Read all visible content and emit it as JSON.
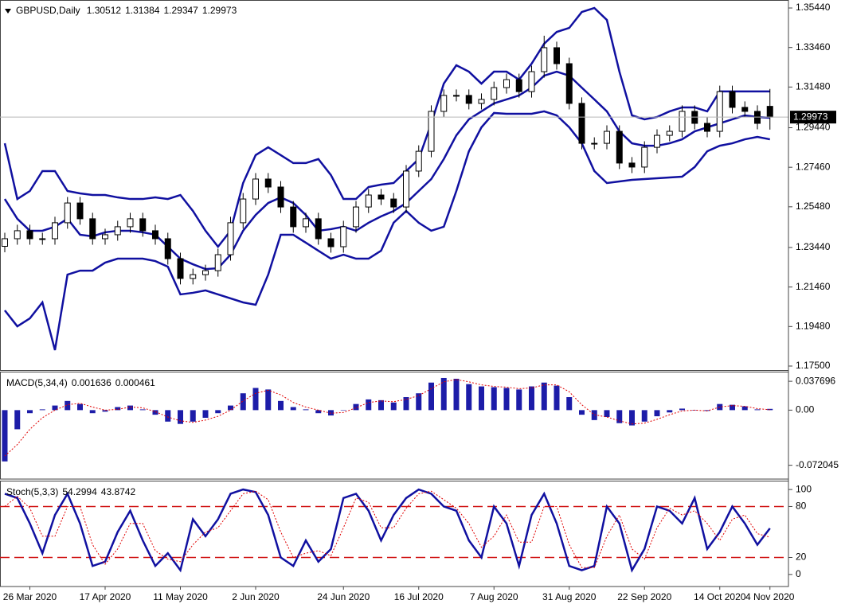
{
  "chart_data": [
    {
      "type": "candlestick",
      "title": "GBPUSD,Daily",
      "categories": [
        null,
        null,
        "26 Mar 2020",
        null,
        null,
        null,
        null,
        null,
        "17 Apr 2020",
        null,
        null,
        null,
        null,
        null,
        "11 May 2020",
        null,
        null,
        null,
        null,
        null,
        "2 Jun 2020",
        null,
        null,
        null,
        null,
        null,
        null,
        "24 Jun 2020",
        null,
        null,
        null,
        null,
        null,
        "16 Jul 2020",
        null,
        null,
        null,
        null,
        null,
        "7 Aug 2020",
        null,
        null,
        null,
        null,
        null,
        "31 Aug 2020",
        null,
        null,
        null,
        null,
        null,
        "22 Sep 2020",
        null,
        null,
        null,
        null,
        null,
        "14 Oct 2020",
        null,
        null,
        null,
        "4 Nov 2020"
      ],
      "open": [
        1.235,
        1.2388,
        1.2428,
        1.2388,
        1.2388,
        1.2468,
        1.2567,
        1.2488,
        1.2388,
        1.2408,
        1.2448,
        1.2488,
        1.2428,
        1.2388,
        1.2288,
        1.2189,
        1.2208,
        1.2228,
        1.2308,
        1.2468,
        1.2587,
        1.2687,
        1.2647,
        1.2547,
        1.2448,
        1.2488,
        1.2388,
        1.2348,
        1.2448,
        1.2547,
        1.2607,
        1.2587,
        1.2547,
        1.2727,
        1.2826,
        1.3026,
        1.3106,
        1.3106,
        1.3066,
        1.3086,
        1.3145,
        1.3185,
        1.3125,
        1.3225,
        1.3345,
        1.3265,
        1.3066,
        1.2866,
        1.2866,
        1.2926,
        1.2767,
        1.2747,
        1.2846,
        1.2906,
        1.2926,
        1.3026,
        1.2966,
        1.2926,
        1.3125,
        1.3046,
        1.3026,
        1.30512
      ],
      "high": [
        1.2418,
        1.2458,
        1.2458,
        1.2418,
        1.2498,
        1.2597,
        1.2597,
        1.2518,
        1.2438,
        1.2478,
        1.2518,
        1.2518,
        1.2458,
        1.2418,
        1.2318,
        1.2238,
        1.2258,
        1.2338,
        1.2498,
        1.2617,
        1.2717,
        1.2717,
        1.2677,
        1.2577,
        1.2518,
        1.2518,
        1.2418,
        1.2478,
        1.2577,
        1.2637,
        1.2637,
        1.2617,
        1.2757,
        1.2856,
        1.3056,
        1.3136,
        1.3136,
        1.3136,
        1.3116,
        1.3175,
        1.3215,
        1.3215,
        1.3255,
        1.3405,
        1.3375,
        1.3295,
        1.3096,
        1.2896,
        1.2956,
        1.2956,
        1.2797,
        1.2876,
        1.2936,
        1.2956,
        1.3056,
        1.3056,
        1.2996,
        1.3155,
        1.3155,
        1.3076,
        1.3056,
        1.31384
      ],
      "low": [
        1.232,
        1.2358,
        1.2358,
        1.2358,
        1.2358,
        1.2438,
        1.2458,
        1.2358,
        1.2358,
        1.2378,
        1.2418,
        1.2398,
        1.2358,
        1.2258,
        1.2159,
        1.2159,
        1.2178,
        1.2198,
        1.2278,
        1.2438,
        1.2557,
        1.2617,
        1.2517,
        1.2418,
        1.2418,
        1.2358,
        1.2318,
        1.2318,
        1.2418,
        1.2517,
        1.2557,
        1.2517,
        1.2517,
        1.2697,
        1.2796,
        1.2996,
        1.3076,
        1.3036,
        1.3036,
        1.3056,
        1.3115,
        1.3095,
        1.3095,
        1.3195,
        1.3235,
        1.3036,
        1.2836,
        1.2836,
        1.2836,
        1.2737,
        1.2717,
        1.2717,
        1.2816,
        1.2876,
        1.2896,
        1.2936,
        1.2896,
        1.2896,
        1.3016,
        1.2996,
        1.2936,
        1.29347
      ],
      "close": [
        1.2388,
        1.2428,
        1.2388,
        1.2388,
        1.2468,
        1.2567,
        1.2488,
        1.2388,
        1.2408,
        1.2448,
        1.2488,
        1.2428,
        1.2388,
        1.2288,
        1.2189,
        1.2208,
        1.2228,
        1.2308,
        1.2468,
        1.2587,
        1.2687,
        1.2647,
        1.2547,
        1.2448,
        1.2488,
        1.2388,
        1.2348,
        1.2448,
        1.2547,
        1.2607,
        1.2587,
        1.2547,
        1.2727,
        1.2826,
        1.3026,
        1.3106,
        1.3106,
        1.3066,
        1.3086,
        1.3145,
        1.3185,
        1.3125,
        1.3225,
        1.3345,
        1.3265,
        1.3066,
        1.2866,
        1.2866,
        1.2926,
        1.2767,
        1.2747,
        1.2846,
        1.2906,
        1.2926,
        1.3026,
        1.2966,
        1.2926,
        1.3125,
        1.3046,
        1.3026,
        1.2966,
        1.29973
      ],
      "bands": [
        {
          "color": "#1010a0",
          "values": [
            1.2866,
            1.2587,
            1.2627,
            1.2727,
            1.2727,
            1.2627,
            1.2615,
            1.2607,
            1.2607,
            1.2595,
            1.2587,
            1.2587,
            1.2595,
            1.2587,
            1.2607,
            1.2527,
            1.2428,
            1.2348,
            1.2428,
            1.2667,
            1.2807,
            1.2846,
            1.2807,
            1.2767,
            1.2767,
            1.2787,
            1.2707,
            1.2587,
            1.2587,
            1.2647,
            1.2659,
            1.2667,
            1.2727,
            1.2787,
            1.2966,
            1.3165,
            1.3257,
            1.3225,
            1.3165,
            1.3225,
            1.3225,
            1.3185,
            1.3265,
            1.3365,
            1.3424,
            1.3444,
            1.3524,
            1.3544,
            1.3484,
            1.3225,
            1.3006,
            1.2986,
            1.2998,
            1.3026,
            1.3046,
            1.3046,
            1.3026,
            1.3126,
            1.3126,
            1.3126,
            1.3126,
            1.3126
          ]
        },
        {
          "color": "#1010a0",
          "values": [
            1.2587,
            1.2488,
            1.2428,
            1.2428,
            1.2448,
            1.2488,
            1.2408,
            1.24,
            1.242,
            1.2428,
            1.2428,
            1.242,
            1.2408,
            1.2348,
            1.2288,
            1.226,
            1.2236,
            1.224,
            1.2308,
            1.2428,
            1.2507,
            1.2567,
            1.2595,
            1.2567,
            1.2507,
            1.2428,
            1.2436,
            1.2448,
            1.2428,
            1.2468,
            1.25,
            1.2527,
            1.2567,
            1.2627,
            1.2687,
            1.2787,
            1.2906,
            1.2986,
            1.3026,
            1.3066,
            1.3086,
            1.3106,
            1.3145,
            1.3205,
            1.3225,
            1.3205,
            1.3145,
            1.3086,
            1.3026,
            1.2926,
            1.2866,
            1.2854,
            1.2854,
            1.2866,
            1.2886,
            1.2926,
            1.2946,
            1.2966,
            1.2986,
            1.3006,
            1.2998,
            1.2994
          ]
        },
        {
          "color": "#1010a0",
          "values": [
            1.2029,
            1.1949,
            1.1989,
            1.2069,
            1.183,
            1.2208,
            1.2228,
            1.2228,
            1.2268,
            1.2288,
            1.2288,
            1.2288,
            1.2276,
            1.2248,
            1.2109,
            1.2117,
            1.2129,
            1.2109,
            1.2089,
            1.2069,
            1.2057,
            1.2208,
            1.2408,
            1.2408,
            1.2368,
            1.2328,
            1.2288,
            1.2308,
            1.2288,
            1.2288,
            1.2328,
            1.2468,
            1.2527,
            1.2468,
            1.2428,
            1.2448,
            1.2627,
            1.2826,
            1.2946,
            1.3018,
            1.3014,
            1.3014,
            1.3014,
            1.3026,
            1.3006,
            1.2946,
            1.2866,
            1.2727,
            1.2667,
            1.2675,
            1.2683,
            1.2687,
            1.2691,
            1.2695,
            1.2699,
            1.2747,
            1.2826,
            1.2854,
            1.2866,
            1.2886,
            1.2898,
            1.2886
          ]
        }
      ],
      "ylim": [
        1.173,
        1.3584
      ],
      "yticks": [
        {
          "value": 1.3544,
          "label": "1.35440"
        },
        {
          "value": 1.3346,
          "label": "1.33460"
        },
        {
          "value": 1.3148,
          "label": "1.31480"
        },
        {
          "value": 1.2944,
          "label": "1.29440"
        },
        {
          "value": 1.2746,
          "label": "1.27460"
        },
        {
          "value": 1.2548,
          "label": "1.25480"
        },
        {
          "value": 1.2344,
          "label": "1.23440"
        },
        {
          "value": 1.2146,
          "label": "1.21460"
        },
        {
          "value": 1.1948,
          "label": "1.19480"
        },
        {
          "value": 1.175,
          "label": "1.17500"
        }
      ]
    },
    {
      "type": "bar",
      "title": "MACD(5,34,4)",
      "series": [
        {
          "type": "bar",
          "color": "#1c1ca8",
          "values": [
            -0.067,
            -0.025,
            -0.004,
            0.001,
            0.006,
            0.012,
            0.008,
            -0.004,
            -0.002,
            0.004,
            0.006,
            0.001,
            -0.006,
            -0.015,
            -0.018,
            -0.015,
            -0.01,
            -0.004,
            0.006,
            0.022,
            0.029,
            0.027,
            0.012,
            0.004,
            0.001,
            -0.004,
            -0.007,
            0,
            0.008,
            0.014,
            0.013,
            0.01,
            0.017,
            0.022,
            0.036,
            0.042,
            0.041,
            0.034,
            0.031,
            0.03,
            0.029,
            0.027,
            0.031,
            0.036,
            0.032,
            0.017,
            -0.006,
            -0.013,
            -0.009,
            -0.017,
            -0.02,
            -0.015,
            -0.008,
            -0.003,
            0.002,
            0,
            -0.001,
            0.008,
            0.007,
            0.005,
            0.001,
            0.001636
          ]
        },
        {
          "type": "line",
          "color": "#e00000",
          "style": "dotted",
          "values": [
            -0.06,
            -0.045,
            -0.025,
            -0.01,
            0.0,
            0.007,
            0.009,
            0.004,
            0.0,
            0.001,
            0.004,
            0.003,
            -0.002,
            -0.009,
            -0.014,
            -0.016,
            -0.013,
            -0.008,
            0.0,
            0.012,
            0.022,
            0.026,
            0.02,
            0.01,
            0.004,
            0.0,
            -0.004,
            -0.003,
            0.003,
            0.01,
            0.012,
            0.011,
            0.014,
            0.019,
            0.028,
            0.037,
            0.04,
            0.037,
            0.033,
            0.031,
            0.03,
            0.028,
            0.029,
            0.033,
            0.033,
            0.024,
            0.007,
            -0.006,
            -0.009,
            -0.014,
            -0.018,
            -0.017,
            -0.012,
            -0.006,
            -0.001,
            0.0,
            -0.001,
            0.004,
            0.006,
            0.005,
            0.002,
            0.000461
          ]
        }
      ],
      "ylim": [
        -0.0901,
        0.0503
      ],
      "yticks": [
        0.037696,
        {
          "value": 0,
          "label": "0.00"
        },
        -0.072045
      ]
    },
    {
      "type": "line",
      "title": "Stoch(5,3,3)",
      "series": [
        {
          "type": "line",
          "color": "#1010a0",
          "style": "solid",
          "values": [
            95,
            90,
            60,
            25,
            70,
            95,
            60,
            10,
            15,
            50,
            75,
            40,
            10,
            25,
            5,
            65,
            45,
            65,
            95,
            100,
            97,
            70,
            20,
            10,
            40,
            15,
            30,
            90,
            95,
            75,
            40,
            70,
            90,
            100,
            95,
            80,
            75,
            40,
            20,
            80,
            60,
            10,
            70,
            95,
            60,
            10,
            5,
            10,
            80,
            60,
            5,
            30,
            80,
            75,
            60,
            90,
            30,
            50,
            80,
            60,
            35,
            54.2994
          ]
        },
        {
          "type": "line",
          "color": "#e00000",
          "style": "dotted",
          "values": [
            80,
            92,
            78,
            45,
            45,
            80,
            80,
            35,
            12,
            30,
            60,
            60,
            28,
            18,
            15,
            35,
            50,
            55,
            75,
            95,
            98,
            88,
            50,
            20,
            25,
            28,
            22,
            55,
            90,
            85,
            55,
            55,
            78,
            95,
            98,
            88,
            78,
            60,
            32,
            45,
            70,
            38,
            38,
            80,
            80,
            35,
            8,
            8,
            45,
            70,
            30,
            18,
            55,
            78,
            70,
            75,
            60,
            40,
            65,
            70,
            48,
            43.8742
          ]
        }
      ],
      "levels": [
        80,
        20
      ],
      "level_color": "#d01010",
      "ylim": [
        -14.2,
        110.4
      ],
      "yticks": [
        100,
        80,
        20,
        0
      ]
    }
  ]
}
